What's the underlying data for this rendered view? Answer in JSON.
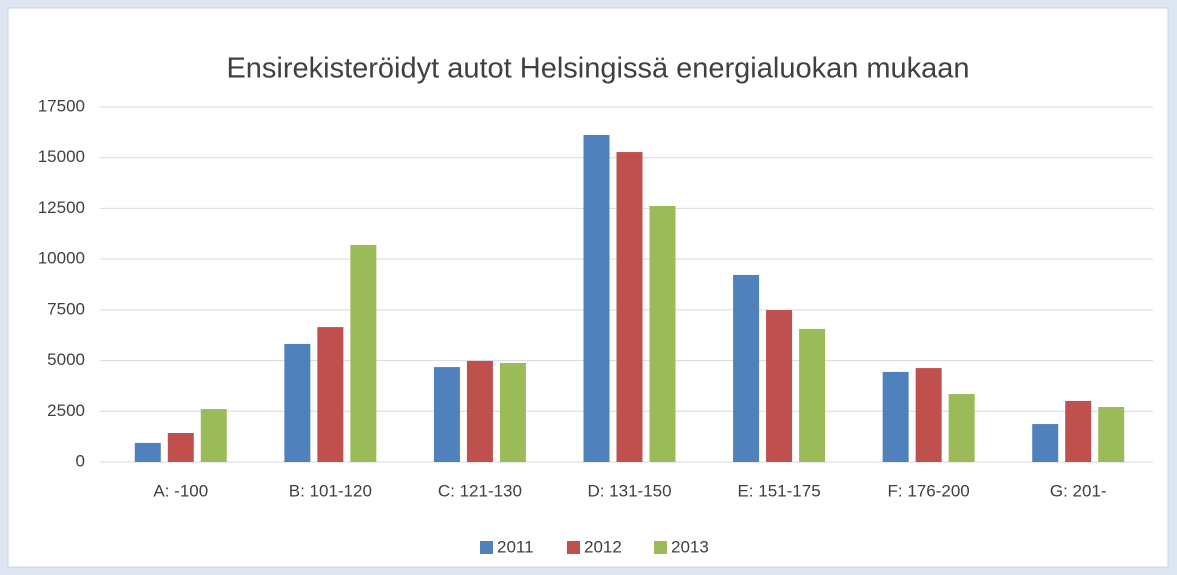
{
  "chart_data": {
    "type": "bar",
    "title": "Ensirekisteröidyt autot Helsingissä energialuokan mukaan",
    "categories": [
      "A: -100",
      "B: 101-120",
      "C: 121-130",
      "D: 131-150",
      "E: 151-175",
      "F: 176-200",
      "G: 201-"
    ],
    "series": [
      {
        "name": "2011",
        "color": "#4f81bd",
        "values": [
          940,
          5820,
          4680,
          16120,
          9220,
          4440,
          1870
        ]
      },
      {
        "name": "2012",
        "color": "#c0504d",
        "values": [
          1430,
          6650,
          4980,
          15280,
          7490,
          4630,
          3010
        ]
      },
      {
        "name": "2013",
        "color": "#9bbb59",
        "values": [
          2610,
          10700,
          4880,
          12620,
          6560,
          3350,
          2710
        ]
      }
    ],
    "ylim": [
      0,
      17500
    ],
    "yticks": [
      0,
      2500,
      5000,
      7500,
      10000,
      12500,
      15000,
      17500
    ],
    "grid": true,
    "legend": "bottom"
  }
}
